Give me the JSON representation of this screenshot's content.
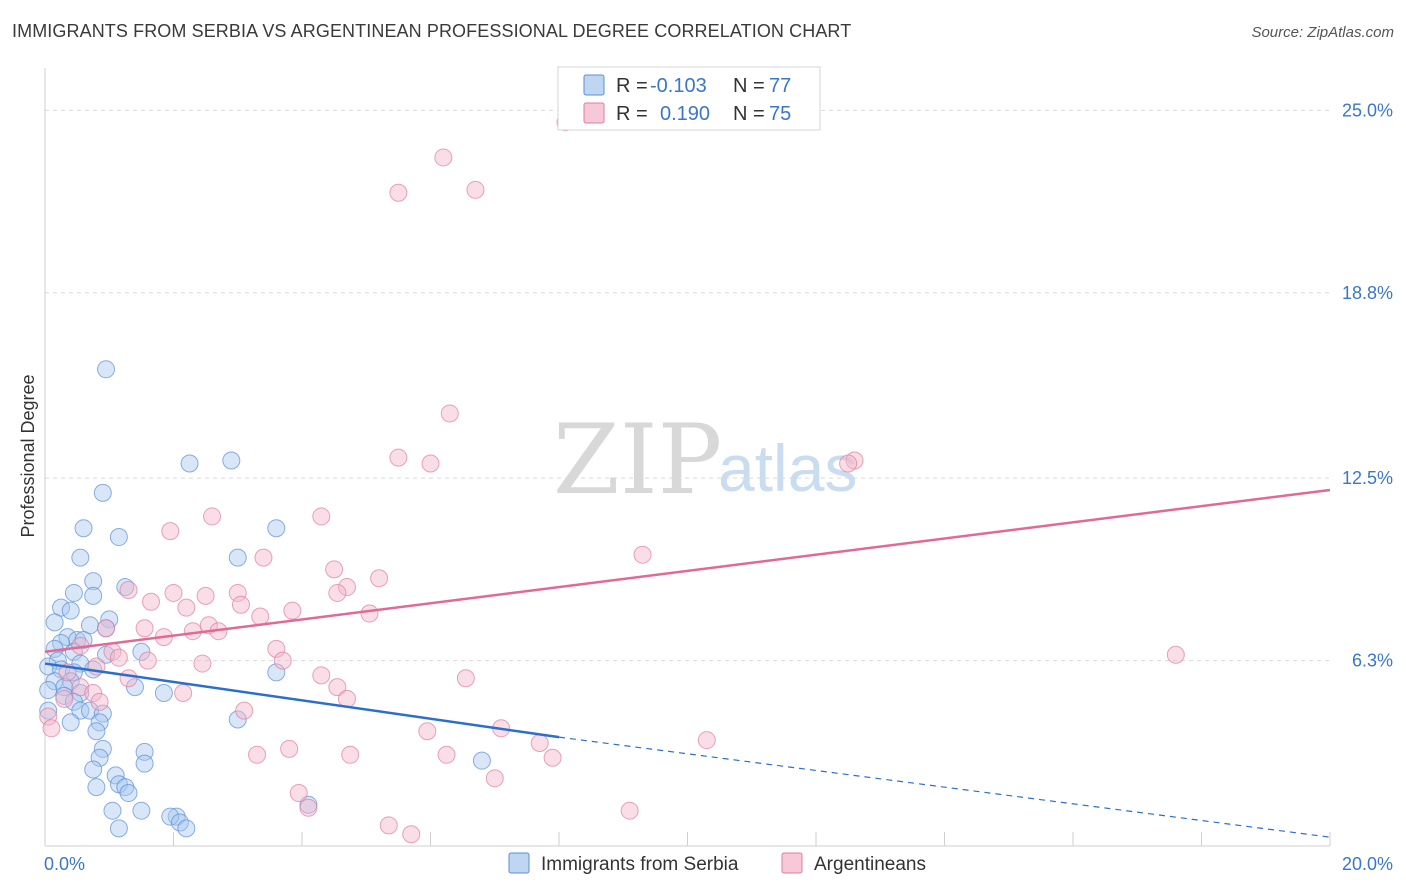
{
  "header": {
    "title": "IMMIGRANTS FROM SERBIA VS ARGENTINEAN PROFESSIONAL DEGREE CORRELATION CHART",
    "source": "Source: ZipAtlas.com"
  },
  "watermark": {
    "zip": "ZIP",
    "atlas": "atlas"
  },
  "colors": {
    "blue_fill": "#a9c8ef",
    "blue_stroke": "#5b8fd6",
    "blue_line": "#2b6fcc",
    "pink_fill": "#f4b6c9",
    "pink_stroke": "#e07d9c",
    "pink_line": "#e06a93",
    "tick_text": "#3a77c9",
    "grid": "#d9d9d9"
  },
  "legend": {
    "r_label": "R =",
    "n_label": "N =",
    "rows": [
      {
        "series": "blue",
        "r": "-0.103",
        "n": "77"
      },
      {
        "series": "pink",
        "r": "0.190",
        "n": "75"
      }
    ]
  },
  "bottom_legend": [
    {
      "series": "blue",
      "label": "Immigrants from Serbia"
    },
    {
      "series": "pink",
      "label": "Argentineans"
    }
  ],
  "chart_data": {
    "type": "scatter",
    "title": "IMMIGRANTS FROM SERBIA VS ARGENTINEAN PROFESSIONAL DEGREE CORRELATION CHART",
    "xlabel": "",
    "ylabel": "Professional Degree",
    "xlim": [
      0,
      20
    ],
    "ylim": [
      0,
      26.1
    ],
    "x_tick_labels": [
      {
        "value": 0,
        "label": "0.0%"
      },
      {
        "value": 20,
        "label": "20.0%"
      }
    ],
    "y_tick_labels": [
      {
        "value": 6.3,
        "label": "6.3%"
      },
      {
        "value": 12.5,
        "label": "12.5%"
      },
      {
        "value": 18.8,
        "label": "18.8%"
      },
      {
        "value": 25.0,
        "label": "25.0%"
      }
    ],
    "x_minor_ticks": [
      0,
      2,
      4,
      6,
      8,
      10,
      12,
      14,
      16,
      18,
      20
    ],
    "grid": true,
    "series": [
      {
        "name": "Immigrants from Serbia",
        "color": "blue",
        "trend": {
          "x": [
            0,
            8
          ],
          "y": [
            6.2,
            3.7
          ],
          "dashed_to": [
            20,
            0.3
          ]
        },
        "points": [
          [
            0.95,
            16.2
          ],
          [
            2.9,
            13.1
          ],
          [
            2.25,
            13.0
          ],
          [
            0.9,
            12.0
          ],
          [
            3.6,
            10.8
          ],
          [
            0.6,
            10.8
          ],
          [
            1.15,
            10.5
          ],
          [
            3.0,
            9.8
          ],
          [
            0.55,
            9.8
          ],
          [
            0.75,
            9.0
          ],
          [
            1.25,
            8.8
          ],
          [
            0.45,
            8.6
          ],
          [
            0.75,
            8.5
          ],
          [
            0.25,
            8.1
          ],
          [
            0.4,
            8.0
          ],
          [
            1.0,
            7.7
          ],
          [
            0.15,
            7.6
          ],
          [
            0.7,
            7.5
          ],
          [
            0.95,
            7.4
          ],
          [
            0.35,
            7.1
          ],
          [
            0.5,
            7.0
          ],
          [
            0.25,
            6.9
          ],
          [
            0.6,
            7.0
          ],
          [
            0.15,
            6.7
          ],
          [
            0.45,
            6.6
          ],
          [
            0.95,
            6.5
          ],
          [
            1.5,
            6.6
          ],
          [
            0.2,
            6.3
          ],
          [
            0.55,
            6.2
          ],
          [
            0.05,
            6.1
          ],
          [
            0.25,
            6.0
          ],
          [
            0.45,
            5.9
          ],
          [
            0.75,
            6.0
          ],
          [
            0.4,
            5.6
          ],
          [
            3.6,
            5.9
          ],
          [
            0.15,
            5.6
          ],
          [
            0.3,
            5.4
          ],
          [
            0.55,
            5.2
          ],
          [
            1.4,
            5.4
          ],
          [
            0.05,
            5.3
          ],
          [
            0.3,
            5.1
          ],
          [
            0.45,
            4.9
          ],
          [
            1.85,
            5.2
          ],
          [
            0.05,
            4.6
          ],
          [
            0.55,
            4.6
          ],
          [
            0.7,
            4.6
          ],
          [
            0.9,
            4.5
          ],
          [
            0.4,
            4.2
          ],
          [
            0.85,
            4.2
          ],
          [
            3.0,
            4.3
          ],
          [
            0.8,
            3.9
          ],
          [
            0.9,
            3.3
          ],
          [
            1.55,
            3.2
          ],
          [
            0.85,
            3.0
          ],
          [
            6.8,
            2.9
          ],
          [
            1.55,
            2.8
          ],
          [
            0.75,
            2.6
          ],
          [
            1.1,
            2.4
          ],
          [
            1.15,
            2.1
          ],
          [
            0.8,
            2.0
          ],
          [
            1.25,
            2.0
          ],
          [
            1.3,
            1.8
          ],
          [
            4.1,
            1.4
          ],
          [
            1.05,
            1.2
          ],
          [
            1.5,
            1.2
          ],
          [
            2.05,
            1.0
          ],
          [
            1.95,
            1.0
          ],
          [
            2.1,
            0.8
          ],
          [
            2.2,
            0.6
          ],
          [
            1.15,
            0.6
          ]
        ]
      },
      {
        "name": "Argentineans",
        "color": "pink",
        "trend": {
          "x": [
            0,
            20
          ],
          "y": [
            6.6,
            12.1
          ]
        },
        "points": [
          [
            8.1,
            24.6
          ],
          [
            6.2,
            23.4
          ],
          [
            6.7,
            22.3
          ],
          [
            5.5,
            22.2
          ],
          [
            6.3,
            14.7
          ],
          [
            5.5,
            13.2
          ],
          [
            6.0,
            13.0
          ],
          [
            12.6,
            13.1
          ],
          [
            12.5,
            13.0
          ],
          [
            2.6,
            11.2
          ],
          [
            4.3,
            11.2
          ],
          [
            1.95,
            10.7
          ],
          [
            9.3,
            9.9
          ],
          [
            3.4,
            9.8
          ],
          [
            4.5,
            9.4
          ],
          [
            5.2,
            9.1
          ],
          [
            4.7,
            8.8
          ],
          [
            1.3,
            8.7
          ],
          [
            2.0,
            8.6
          ],
          [
            2.5,
            8.5
          ],
          [
            1.65,
            8.3
          ],
          [
            3.0,
            8.6
          ],
          [
            4.55,
            8.6
          ],
          [
            2.2,
            8.1
          ],
          [
            3.05,
            8.2
          ],
          [
            3.85,
            8.0
          ],
          [
            5.05,
            7.9
          ],
          [
            3.35,
            7.8
          ],
          [
            2.55,
            7.5
          ],
          [
            2.3,
            7.3
          ],
          [
            2.7,
            7.3
          ],
          [
            1.55,
            7.4
          ],
          [
            0.95,
            7.4
          ],
          [
            1.85,
            7.1
          ],
          [
            0.55,
            6.8
          ],
          [
            1.05,
            6.6
          ],
          [
            3.6,
            6.7
          ],
          [
            1.15,
            6.4
          ],
          [
            1.6,
            6.3
          ],
          [
            2.45,
            6.2
          ],
          [
            3.7,
            6.3
          ],
          [
            0.8,
            6.1
          ],
          [
            0.35,
            5.9
          ],
          [
            4.3,
            5.8
          ],
          [
            1.3,
            5.7
          ],
          [
            6.55,
            5.7
          ],
          [
            0.55,
            5.4
          ],
          [
            4.55,
            5.4
          ],
          [
            17.6,
            6.5
          ],
          [
            0.75,
            5.2
          ],
          [
            2.15,
            5.2
          ],
          [
            4.7,
            5.0
          ],
          [
            0.3,
            5.0
          ],
          [
            0.85,
            4.9
          ],
          [
            3.1,
            4.6
          ],
          [
            0.05,
            4.4
          ],
          [
            0.1,
            4.0
          ],
          [
            5.95,
            3.9
          ],
          [
            7.1,
            4.0
          ],
          [
            10.3,
            3.6
          ],
          [
            7.7,
            3.5
          ],
          [
            3.8,
            3.3
          ],
          [
            3.3,
            3.1
          ],
          [
            4.75,
            3.1
          ],
          [
            6.25,
            3.1
          ],
          [
            7.9,
            3.0
          ],
          [
            7.0,
            2.3
          ],
          [
            3.95,
            1.8
          ],
          [
            4.1,
            1.3
          ],
          [
            9.1,
            1.2
          ],
          [
            5.35,
            0.7
          ],
          [
            5.7,
            0.4
          ]
        ]
      }
    ]
  }
}
